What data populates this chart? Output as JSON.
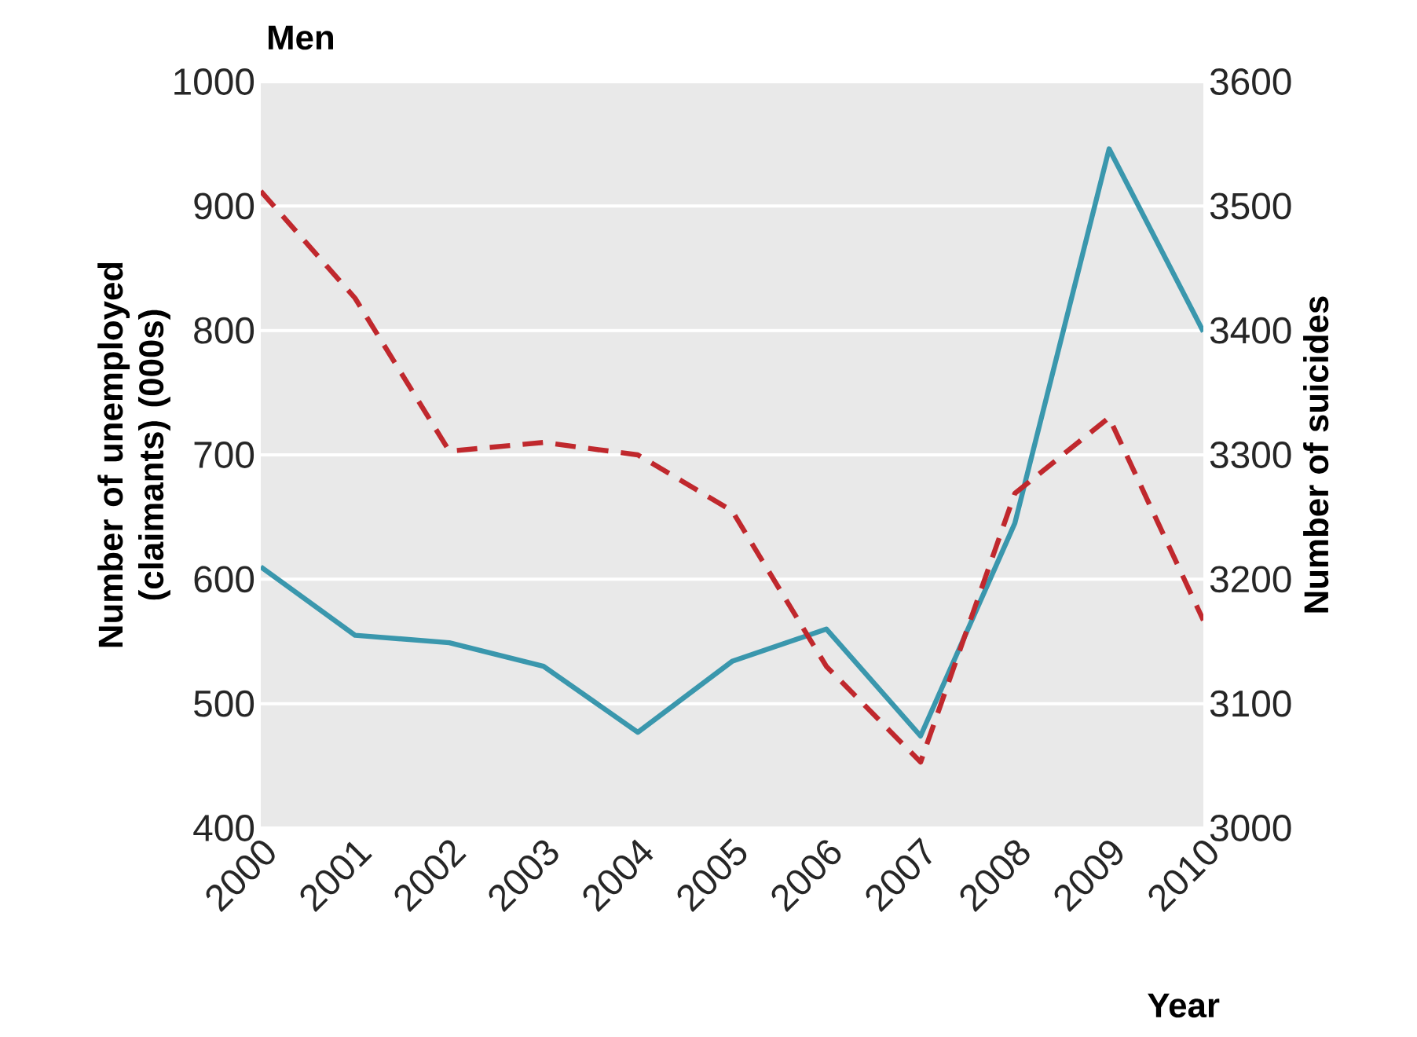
{
  "chart_data": {
    "type": "line",
    "title": "Men",
    "xlabel": "Year",
    "ylabel": "Number of unemployed (claimants) (000s)",
    "y2label": "Number of suicides",
    "x": [
      2000,
      2001,
      2002,
      2003,
      2004,
      2005,
      2006,
      2007,
      2008,
      2009,
      2010
    ],
    "xlim": [
      2000,
      2010
    ],
    "xticks": [
      2000,
      2001,
      2002,
      2003,
      2004,
      2005,
      2006,
      2007,
      2008,
      2009,
      2010
    ],
    "ylim": [
      400,
      1000
    ],
    "yticks": [
      400,
      500,
      600,
      700,
      800,
      900,
      1000
    ],
    "y2lim": [
      3000,
      3600
    ],
    "y2ticks": [
      3000,
      3100,
      3200,
      3300,
      3400,
      3500,
      3600
    ],
    "grid": "y",
    "series": [
      {
        "color": "#3a97ad",
        "line_style": "solid",
        "values": [
          610,
          555,
          549,
          530,
          477,
          534,
          560,
          474,
          645,
          946,
          799
        ]
      },
      {
        "color": "#c0282d",
        "line_style": "dashed",
        "axis": "y2",
        "values": [
          3512,
          3426,
          3303,
          3310,
          3300,
          3255,
          3130,
          3053,
          3269,
          3330,
          3167
        ]
      }
    ]
  }
}
